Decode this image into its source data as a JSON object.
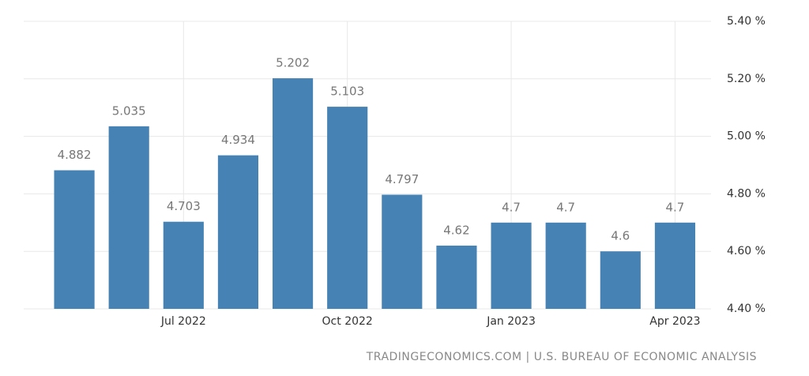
{
  "chart_data": {
    "type": "bar",
    "categories": [
      null,
      null,
      "Jul 2022",
      null,
      null,
      "Oct 2022",
      null,
      null,
      "Jan 2023",
      null,
      null,
      "Apr 2023"
    ],
    "values": [
      4.882,
      5.035,
      4.703,
      4.934,
      5.202,
      5.103,
      4.797,
      4.62,
      4.7,
      4.7,
      4.6,
      4.7
    ],
    "color": "#4682b4",
    "ylim": [
      4.4,
      5.4
    ],
    "yticks": [
      {
        "value": 4.4,
        "label": "4.40 %"
      },
      {
        "value": 4.6,
        "label": "4.60 %"
      },
      {
        "value": 4.8,
        "label": "4.80 %"
      },
      {
        "value": 5.0,
        "label": "5.00 %"
      },
      {
        "value": 5.2,
        "label": "5.20 %"
      },
      {
        "value": 5.4,
        "label": "5.40 %"
      }
    ],
    "grid": true,
    "source": "TRADINGECONOMICS.COM | U.S. BUREAU OF ECONOMIC ANALYSIS"
  }
}
